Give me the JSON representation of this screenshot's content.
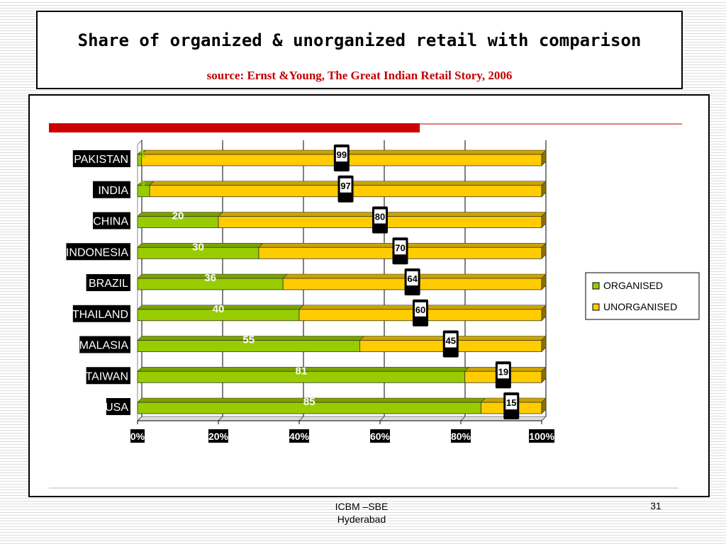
{
  "slide": {
    "title": "Share of organized & unorganized retail with comparison",
    "source": "source: Ernst &Young, The Great Indian Retail Story, 2006",
    "footer_line1": "ICBM –SBE",
    "footer_line2": "Hyderabad",
    "page_number": "31"
  },
  "colors": {
    "organised": "#99cc00",
    "unorganised": "#ffcc00",
    "accent_bar": "#cc0000"
  },
  "chart_data": {
    "type": "bar",
    "orientation": "horizontal",
    "stacked": "100%",
    "categories": [
      "PAKISTAN",
      "INDIA",
      "CHINA",
      "INDONESIA",
      "BRAZIL",
      "THAILAND",
      "MALASIA",
      "TAIWAN",
      "USA"
    ],
    "series": [
      {
        "name": "ORGANISED",
        "values": [
          1,
          3,
          20,
          30,
          36,
          40,
          55,
          81,
          85
        ]
      },
      {
        "name": "UNORGANISED",
        "values": [
          99,
          97,
          80,
          70,
          64,
          60,
          45,
          19,
          15
        ]
      }
    ],
    "x_ticks": [
      "0%",
      "20%",
      "40%",
      "60%",
      "80%",
      "100%"
    ],
    "xlim": [
      0,
      100
    ],
    "grid": true,
    "legend_position": "right",
    "data_labels": true
  }
}
